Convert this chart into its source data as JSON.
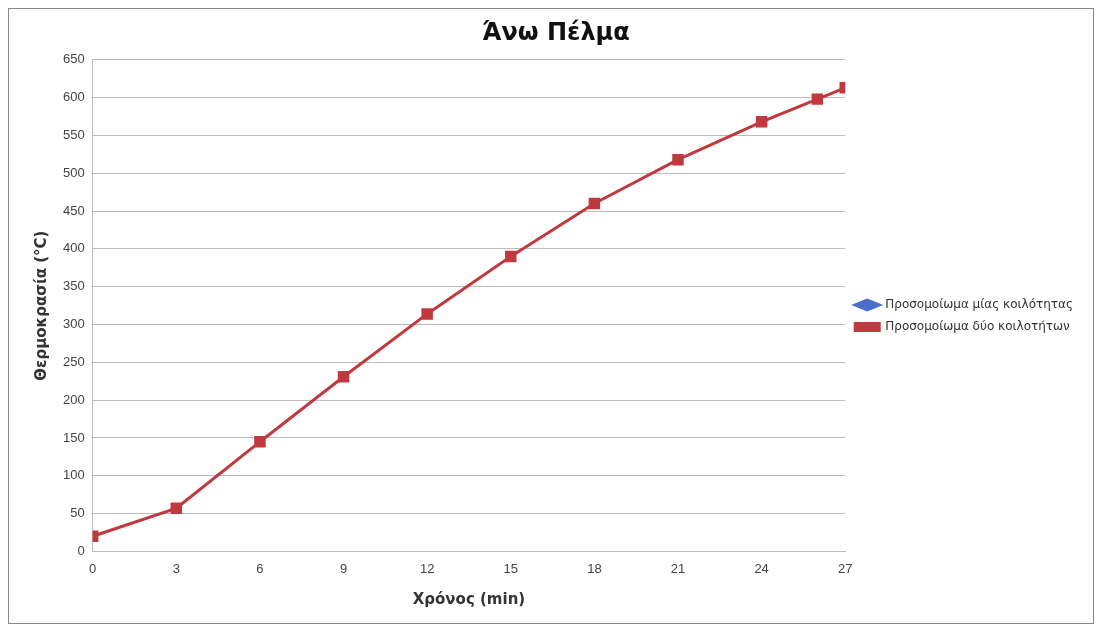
{
  "chart_data": {
    "type": "line",
    "title": "Άνω Πέλμα",
    "xlabel": "Χρόνος (min)",
    "ylabel": "Θερμοκρασία (°C)",
    "x": [
      0,
      3,
      6,
      9,
      12,
      15,
      18,
      21,
      24,
      26,
      27
    ],
    "xlim": [
      0,
      27
    ],
    "xticks": [
      0,
      3,
      6,
      9,
      12,
      15,
      18,
      21,
      24,
      27
    ],
    "ylim": [
      0,
      650
    ],
    "yticks": [
      0,
      50,
      100,
      150,
      200,
      250,
      300,
      350,
      400,
      450,
      500,
      550,
      600,
      650
    ],
    "grid": "y",
    "legend": "right",
    "series": [
      {
        "name": "Προσομοίωμα μίας κοιλότητας",
        "color": "#4a6fc8",
        "marker": "diamond",
        "values": [
          null,
          null,
          null,
          null,
          null,
          null,
          null,
          null,
          null,
          null,
          null
        ]
      },
      {
        "name": "Προσομοίωμα δύο κοιλοτήτων",
        "color": "#c0393f",
        "marker": "square",
        "values": [
          20,
          57,
          145,
          231,
          314,
          390,
          460,
          518,
          568,
          598,
          613
        ]
      }
    ]
  }
}
